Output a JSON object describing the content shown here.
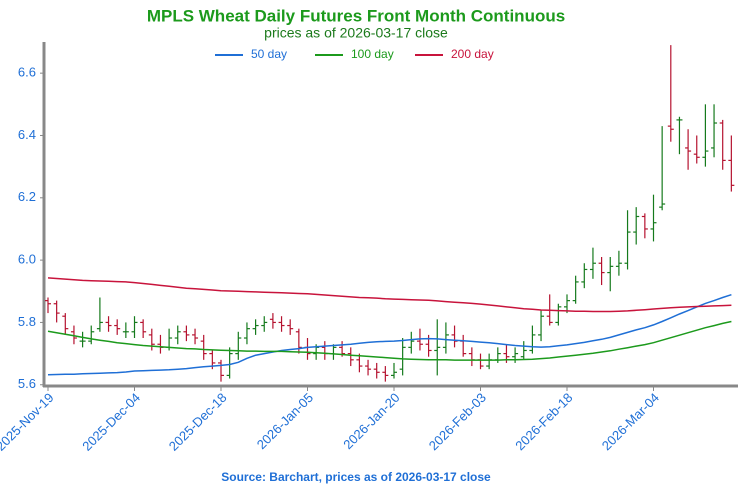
{
  "chart_data": {
    "type": "ohlc",
    "title": "MPLS Wheat Daily Futures Front Month Continuous",
    "subtitle": "prices as of 2026-03-17 close",
    "source": "Source: Barchart, prices as of 2026-03-17 close",
    "categories": [
      "2025-Nov-19",
      null,
      null,
      null,
      null,
      null,
      null,
      null,
      null,
      null,
      "2025-Dec-04",
      null,
      null,
      null,
      null,
      null,
      null,
      null,
      null,
      null,
      "2025-Dec-18",
      null,
      null,
      null,
      null,
      null,
      null,
      null,
      null,
      null,
      "2026-Jan-05",
      null,
      null,
      null,
      null,
      null,
      null,
      null,
      null,
      null,
      "2026-Jan-20",
      null,
      null,
      null,
      null,
      null,
      null,
      null,
      null,
      null,
      "2026-Feb-03",
      null,
      null,
      null,
      null,
      null,
      null,
      null,
      null,
      null,
      "2026-Feb-18",
      null,
      null,
      null,
      null,
      null,
      null,
      null,
      null,
      null,
      "2026-Mar-04",
      null,
      null,
      null,
      null,
      null,
      null,
      null,
      null,
      null
    ],
    "open": [
      5.87,
      5.86,
      5.82,
      5.77,
      5.74,
      5.74,
      5.78,
      5.8,
      5.79,
      5.77,
      5.77,
      5.8,
      5.76,
      5.73,
      5.72,
      5.75,
      5.77,
      5.76,
      5.74,
      5.7,
      5.67,
      5.63,
      5.7,
      5.75,
      5.78,
      5.79,
      5.81,
      5.8,
      5.79,
      5.77,
      5.72,
      5.7,
      5.72,
      5.7,
      5.72,
      5.7,
      5.68,
      5.66,
      5.65,
      5.64,
      5.63,
      5.65,
      5.72,
      5.74,
      5.73,
      5.71,
      5.72,
      5.76,
      5.74,
      5.7,
      5.68,
      5.66,
      5.68,
      5.7,
      5.69,
      5.69,
      5.71,
      5.76,
      5.82,
      5.8,
      5.85,
      5.87,
      5.93,
      5.97,
      5.99,
      5.96,
      5.98,
      5.99,
      6.09,
      6.14,
      6.1,
      6.17,
      6.43,
      6.45,
      6.36,
      6.34,
      6.33,
      6.36,
      6.44,
      6.32
    ],
    "high": [
      5.88,
      5.87,
      5.83,
      5.79,
      5.77,
      5.79,
      5.88,
      5.82,
      5.81,
      5.8,
      5.82,
      5.81,
      5.78,
      5.76,
      5.78,
      5.79,
      5.79,
      5.78,
      5.76,
      5.71,
      5.68,
      5.72,
      5.77,
      5.8,
      5.81,
      5.82,
      5.83,
      5.82,
      5.81,
      5.78,
      5.75,
      5.73,
      5.74,
      5.73,
      5.74,
      5.72,
      5.7,
      5.68,
      5.67,
      5.66,
      5.67,
      5.75,
      5.77,
      5.78,
      5.76,
      5.81,
      5.8,
      5.79,
      5.76,
      5.72,
      5.7,
      5.7,
      5.72,
      5.73,
      5.72,
      5.74,
      5.79,
      5.84,
      5.89,
      5.86,
      5.89,
      5.95,
      5.99,
      6.04,
      6.01,
      6.01,
      6.03,
      6.16,
      6.17,
      6.15,
      6.21,
      6.43,
      6.69,
      6.46,
      6.42,
      6.4,
      6.5,
      6.5,
      6.45,
      6.4
    ],
    "low": [
      5.83,
      5.8,
      5.76,
      5.73,
      5.72,
      5.73,
      5.77,
      5.77,
      5.76,
      5.75,
      5.75,
      5.75,
      5.71,
      5.7,
      5.71,
      5.73,
      5.74,
      5.73,
      5.68,
      5.65,
      5.61,
      5.62,
      5.68,
      5.73,
      5.76,
      5.77,
      5.78,
      5.77,
      5.76,
      5.7,
      5.68,
      5.68,
      5.68,
      5.68,
      5.69,
      5.66,
      5.64,
      5.63,
      5.62,
      5.61,
      5.62,
      5.63,
      5.7,
      5.71,
      5.69,
      5.63,
      5.7,
      5.72,
      5.69,
      5.66,
      5.65,
      5.65,
      5.67,
      5.67,
      5.67,
      5.68,
      5.7,
      5.74,
      5.79,
      5.79,
      5.83,
      5.86,
      5.91,
      5.94,
      5.92,
      5.9,
      5.95,
      5.97,
      6.05,
      6.07,
      6.06,
      6.16,
      6.38,
      6.34,
      6.29,
      6.31,
      6.3,
      6.33,
      6.29,
      6.22
    ],
    "close": [
      5.86,
      5.83,
      5.78,
      5.75,
      5.74,
      5.77,
      5.8,
      5.79,
      5.78,
      5.77,
      5.8,
      5.77,
      5.73,
      5.72,
      5.75,
      5.77,
      5.76,
      5.75,
      5.7,
      5.67,
      5.63,
      5.7,
      5.75,
      5.78,
      5.79,
      5.8,
      5.8,
      5.79,
      5.78,
      5.72,
      5.7,
      5.72,
      5.7,
      5.72,
      5.7,
      5.68,
      5.66,
      5.65,
      5.64,
      5.63,
      5.64,
      5.72,
      5.74,
      5.73,
      5.71,
      5.72,
      5.76,
      5.74,
      5.7,
      5.68,
      5.66,
      5.68,
      5.7,
      5.69,
      5.7,
      5.71,
      5.76,
      5.82,
      5.8,
      5.85,
      5.87,
      5.93,
      5.97,
      5.99,
      5.96,
      5.98,
      5.99,
      6.09,
      6.14,
      6.1,
      6.12,
      6.18,
      6.42,
      6.45,
      6.35,
      6.33,
      6.35,
      6.44,
      6.32,
      6.24
    ],
    "up_color": "#157a1c",
    "down_color": "#b5122f",
    "series": [
      {
        "name": "50 day",
        "color": "#1f6fd6",
        "values": [
          5.632,
          5.633,
          5.634,
          5.634,
          5.635,
          5.636,
          5.637,
          5.638,
          5.639,
          5.641,
          5.644,
          5.645,
          5.646,
          5.647,
          5.648,
          5.65,
          5.652,
          5.655,
          5.658,
          5.66,
          5.662,
          5.665,
          5.672,
          5.685,
          5.695,
          5.7,
          5.705,
          5.71,
          5.713,
          5.716,
          5.72,
          5.722,
          5.724,
          5.726,
          5.728,
          5.73,
          5.733,
          5.736,
          5.738,
          5.739,
          5.74,
          5.742,
          5.745,
          5.747,
          5.748,
          5.747,
          5.745,
          5.743,
          5.741,
          5.739,
          5.737,
          5.735,
          5.732,
          5.729,
          5.726,
          5.724,
          5.722,
          5.721,
          5.722,
          5.725,
          5.728,
          5.732,
          5.736,
          5.741,
          5.746,
          5.752,
          5.76,
          5.768,
          5.776,
          5.783,
          5.792,
          5.803,
          5.815,
          5.827,
          5.838,
          5.85,
          5.861,
          5.87,
          5.88,
          5.889
        ]
      },
      {
        "name": "100 day",
        "color": "#1c9a1c",
        "values": [
          5.772,
          5.767,
          5.762,
          5.757,
          5.752,
          5.747,
          5.743,
          5.739,
          5.735,
          5.732,
          5.729,
          5.726,
          5.724,
          5.722,
          5.72,
          5.718,
          5.716,
          5.715,
          5.713,
          5.712,
          5.711,
          5.71,
          5.709,
          5.708,
          5.708,
          5.707,
          5.707,
          5.707,
          5.706,
          5.705,
          5.704,
          5.703,
          5.701,
          5.699,
          5.697,
          5.695,
          5.693,
          5.691,
          5.689,
          5.687,
          5.685,
          5.683,
          5.682,
          5.681,
          5.68,
          5.68,
          5.68,
          5.679,
          5.679,
          5.679,
          5.679,
          5.679,
          5.679,
          5.68,
          5.68,
          5.681,
          5.682,
          5.684,
          5.686,
          5.689,
          5.692,
          5.695,
          5.698,
          5.701,
          5.705,
          5.709,
          5.714,
          5.719,
          5.724,
          5.729,
          5.735,
          5.743,
          5.751,
          5.759,
          5.767,
          5.775,
          5.783,
          5.79,
          5.797,
          5.803
        ]
      },
      {
        "name": "200 day",
        "color": "#c8143c",
        "values": [
          5.943,
          5.941,
          5.939,
          5.937,
          5.935,
          5.934,
          5.933,
          5.932,
          5.931,
          5.93,
          5.928,
          5.925,
          5.922,
          5.919,
          5.916,
          5.913,
          5.91,
          5.908,
          5.906,
          5.904,
          5.902,
          5.901,
          5.9,
          5.899,
          5.898,
          5.897,
          5.896,
          5.895,
          5.894,
          5.893,
          5.892,
          5.89,
          5.888,
          5.886,
          5.884,
          5.882,
          5.88,
          5.879,
          5.878,
          5.876,
          5.875,
          5.874,
          5.873,
          5.872,
          5.871,
          5.869,
          5.867,
          5.865,
          5.863,
          5.861,
          5.859,
          5.856,
          5.853,
          5.85,
          5.847,
          5.844,
          5.842,
          5.84,
          5.839,
          5.838,
          5.837,
          5.836,
          5.836,
          5.835,
          5.835,
          5.835,
          5.836,
          5.837,
          5.839,
          5.841,
          5.843,
          5.845,
          5.847,
          5.849,
          5.85,
          5.851,
          5.852,
          5.853,
          5.854,
          5.855
        ]
      }
    ],
    "ylim": [
      5.596,
      6.7
    ],
    "yticks": [
      5.6,
      5.8,
      {
        "value": 6,
        "label": "6.0"
      },
      6.2,
      6.4,
      6.6
    ]
  }
}
